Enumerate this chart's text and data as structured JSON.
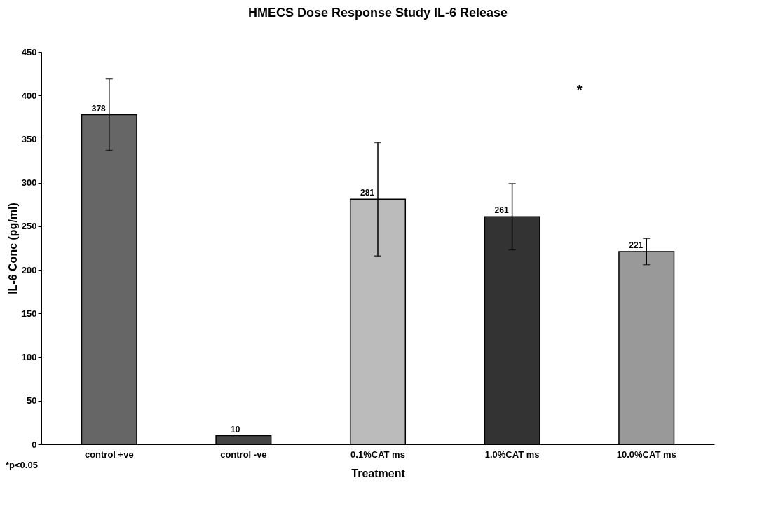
{
  "chart_data": {
    "type": "bar",
    "title": "HMECS Dose Response Study IL-6 Release",
    "xlabel": "Treatment",
    "ylabel": "IL-6 Conc (pg/ml)",
    "categories": [
      "control +ve",
      "control -ve",
      "0.1%CAT ms",
      "1.0%CAT ms",
      "10.0%CAT ms"
    ],
    "values": [
      378,
      10,
      281,
      261,
      221
    ],
    "errors": [
      41,
      null,
      65,
      38,
      15
    ],
    "colors": [
      "#666666",
      "#444444",
      "#bbbbbb",
      "#333333",
      "#999999"
    ],
    "ylim": [
      0,
      450
    ],
    "yticks": [
      0,
      50,
      100,
      150,
      200,
      250,
      300,
      350,
      400,
      450
    ],
    "data_labels": true,
    "grid": false,
    "legend": false,
    "annotations": [
      "*",
      "*p<0.05"
    ]
  }
}
